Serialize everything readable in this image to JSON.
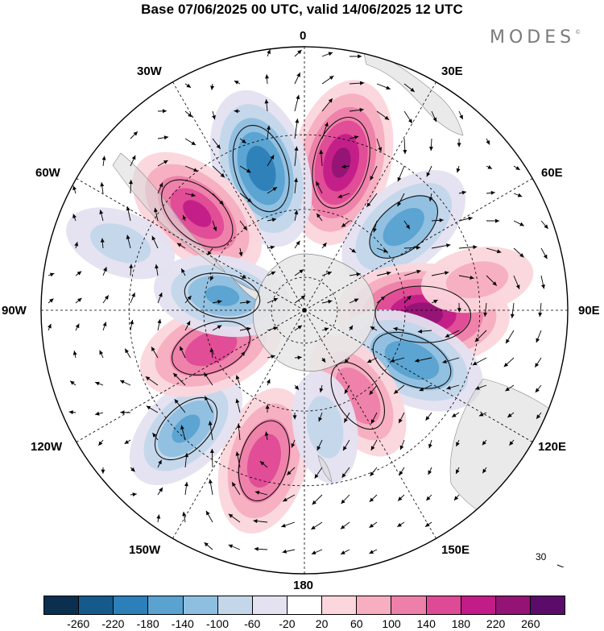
{
  "title": "Base 07/06/2025 00 UTC, valid 14/06/2025 12 UTC",
  "brand": "MODES",
  "brand_mark": "©",
  "lon_labels": {
    "n0": "0",
    "n30e": "30E",
    "n60e": "60E",
    "n90e": "90E",
    "n120e": "120E",
    "n150e": "150E",
    "n180": "180",
    "n150w": "150W",
    "n120w": "120W",
    "n90w": "90W",
    "n60w": "60W",
    "n30w": "30W"
  },
  "reference_vector": {
    "label": "30"
  },
  "colorbar": {
    "colors": [
      "#0b2f4f",
      "#155a8a",
      "#2c7fb8",
      "#5aa2d0",
      "#8fbfe0",
      "#c3d6ea",
      "#e4e2f0",
      "#ffffff",
      "#fbd6dc",
      "#f6aec0",
      "#ee7fa9",
      "#df4a96",
      "#c21c88",
      "#931475",
      "#5b0c6b"
    ],
    "ticks": [
      "-260",
      "-220",
      "-180",
      "-140",
      "-100",
      "-60",
      "-20",
      "20",
      "60",
      "100",
      "140",
      "180",
      "220",
      "260"
    ]
  },
  "map_data": {
    "projection": "south-polar-stereographic",
    "field_anomalies": [
      {
        "lon": 14,
        "lat": -46,
        "value": 225
      },
      {
        "lon": -17,
        "lat": -47,
        "value": -205
      },
      {
        "lon": -48,
        "lat": -48,
        "value": 185
      },
      {
        "lon": 50,
        "lat": -52,
        "value": -160
      },
      {
        "lon": 92,
        "lat": -55,
        "value": 240
      },
      {
        "lon": 115,
        "lat": -55,
        "value": -175
      },
      {
        "lon": 148,
        "lat": -60,
        "value": 130
      },
      {
        "lon": -165,
        "lat": -45,
        "value": 170
      },
      {
        "lon": -135,
        "lat": -42,
        "value": -140
      },
      {
        "lon": -112,
        "lat": -60,
        "value": 170
      },
      {
        "lon": -80,
        "lat": -65,
        "value": -140
      },
      {
        "lon": 170,
        "lat": -55,
        "value": -70
      },
      {
        "lon": -70,
        "lat": -35,
        "value": -70
      },
      {
        "lon": 80,
        "lat": -40,
        "value": 70
      }
    ]
  }
}
